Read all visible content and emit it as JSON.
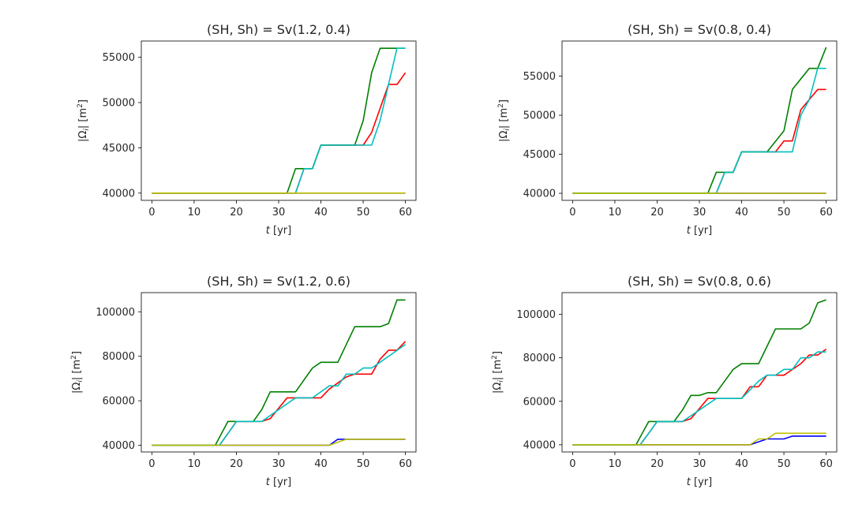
{
  "figure": {
    "background": "#ffffff",
    "line_colors": [
      "#0000ff",
      "#ff0000",
      "#008000",
      "#00bfbf",
      "#bfbf00"
    ]
  },
  "chart_data": [
    {
      "type": "line",
      "title": "(SH, Sh) = Sv(1.2, 0.4)",
      "xlabel": "t [yr]",
      "ylabel": "|Ωi| [m2]",
      "xlim": [
        -2.5,
        62.5
      ],
      "ylim": [
        39200,
        56800
      ],
      "xticks": [
        0,
        10,
        20,
        30,
        40,
        50,
        60
      ],
      "yticks": [
        40000,
        45000,
        50000,
        55000
      ],
      "series": [
        {
          "color": "#0000ff",
          "points": [
            [
              0,
              40000
            ],
            [
              60,
              40000
            ]
          ]
        },
        {
          "color": "#ff0000",
          "points": [
            [
              0,
              40000
            ],
            [
              34,
              40000
            ],
            [
              36,
              42700
            ],
            [
              38,
              42700
            ],
            [
              40,
              45300
            ],
            [
              50,
              45300
            ],
            [
              52,
              46700
            ],
            [
              56,
              52000
            ],
            [
              58,
              52000
            ],
            [
              60,
              53300
            ]
          ]
        },
        {
          "color": "#008000",
          "points": [
            [
              0,
              40000
            ],
            [
              32,
              40000
            ],
            [
              34,
              42700
            ],
            [
              38,
              42700
            ],
            [
              40,
              45300
            ],
            [
              48,
              45300
            ],
            [
              50,
              48000
            ],
            [
              52,
              53300
            ],
            [
              54,
              56000
            ],
            [
              60,
              56000
            ]
          ]
        },
        {
          "color": "#00bfbf",
          "points": [
            [
              0,
              40000
            ],
            [
              34,
              40000
            ],
            [
              36,
              42700
            ],
            [
              38,
              42700
            ],
            [
              40,
              45300
            ],
            [
              52,
              45300
            ],
            [
              54,
              48000
            ],
            [
              56,
              52000
            ],
            [
              58,
              56000
            ],
            [
              60,
              56000
            ]
          ]
        },
        {
          "color": "#bfbf00",
          "points": [
            [
              0,
              40000
            ],
            [
              60,
              40000
            ]
          ]
        }
      ]
    },
    {
      "type": "line",
      "title": "(SH, Sh) = Sv(0.8, 0.4)",
      "xlabel": "t [yr]",
      "ylabel": "|Ωi| [m2]",
      "xlim": [
        -2.5,
        62.5
      ],
      "ylim": [
        39100,
        59500
      ],
      "xticks": [
        0,
        10,
        20,
        30,
        40,
        50,
        60
      ],
      "yticks": [
        40000,
        45000,
        50000,
        55000
      ],
      "series": [
        {
          "color": "#0000ff",
          "points": [
            [
              0,
              40000
            ],
            [
              60,
              40000
            ]
          ]
        },
        {
          "color": "#ff0000",
          "points": [
            [
              0,
              40000
            ],
            [
              34,
              40000
            ],
            [
              36,
              42700
            ],
            [
              38,
              42700
            ],
            [
              40,
              45300
            ],
            [
              48,
              45300
            ],
            [
              50,
              46700
            ],
            [
              52,
              46700
            ],
            [
              54,
              50700
            ],
            [
              56,
              52000
            ],
            [
              58,
              53300
            ],
            [
              60,
              53300
            ]
          ]
        },
        {
          "color": "#008000",
          "points": [
            [
              0,
              40000
            ],
            [
              32,
              40000
            ],
            [
              34,
              42700
            ],
            [
              38,
              42700
            ],
            [
              40,
              45300
            ],
            [
              46,
              45300
            ],
            [
              50,
              48000
            ],
            [
              52,
              53300
            ],
            [
              56,
              56000
            ],
            [
              58,
              56000
            ],
            [
              60,
              58700
            ]
          ]
        },
        {
          "color": "#00bfbf",
          "points": [
            [
              0,
              40000
            ],
            [
              34,
              40000
            ],
            [
              36,
              42700
            ],
            [
              38,
              42700
            ],
            [
              40,
              45300
            ],
            [
              52,
              45300
            ],
            [
              54,
              50000
            ],
            [
              56,
              52000
            ],
            [
              58,
              56000
            ],
            [
              60,
              56000
            ]
          ]
        },
        {
          "color": "#bfbf00",
          "points": [
            [
              0,
              40000
            ],
            [
              60,
              40000
            ]
          ]
        }
      ]
    },
    {
      "type": "line",
      "title": "(SH, Sh) = Sv(1.2, 0.6)",
      "xlabel": "t [yr]",
      "ylabel": "|Ωi| [m2]",
      "xlim": [
        -2.5,
        62.5
      ],
      "ylim": [
        37000,
        108600
      ],
      "xticks": [
        0,
        10,
        20,
        30,
        40,
        50,
        60
      ],
      "yticks": [
        40000,
        60000,
        80000,
        100000
      ],
      "series": [
        {
          "color": "#0000ff",
          "points": [
            [
              0,
              40000
            ],
            [
              42,
              40000
            ],
            [
              44,
              42700
            ],
            [
              60,
              42700
            ]
          ]
        },
        {
          "color": "#ff0000",
          "points": [
            [
              0,
              40000
            ],
            [
              16,
              40000
            ],
            [
              18,
              45300
            ],
            [
              20,
              50700
            ],
            [
              26,
              50700
            ],
            [
              28,
              52000
            ],
            [
              32,
              61300
            ],
            [
              40,
              61300
            ],
            [
              42,
              65300
            ],
            [
              46,
              70700
            ],
            [
              48,
              72000
            ],
            [
              52,
              72000
            ],
            [
              54,
              78700
            ],
            [
              56,
              82700
            ],
            [
              58,
              82700
            ],
            [
              60,
              86700
            ]
          ]
        },
        {
          "color": "#008000",
          "points": [
            [
              0,
              40000
            ],
            [
              15,
              40000
            ],
            [
              18,
              50700
            ],
            [
              24,
              50700
            ],
            [
              26,
              56000
            ],
            [
              28,
              64000
            ],
            [
              34,
              64000
            ],
            [
              38,
              74700
            ],
            [
              40,
              77300
            ],
            [
              44,
              77300
            ],
            [
              48,
              93300
            ],
            [
              54,
              93300
            ],
            [
              56,
              94700
            ],
            [
              58,
              105300
            ],
            [
              60,
              105300
            ]
          ]
        },
        {
          "color": "#00bfbf",
          "points": [
            [
              0,
              40000
            ],
            [
              16,
              40000
            ],
            [
              18,
              45300
            ],
            [
              20,
              50700
            ],
            [
              26,
              50700
            ],
            [
              30,
              56000
            ],
            [
              34,
              61300
            ],
            [
              38,
              61300
            ],
            [
              42,
              66700
            ],
            [
              44,
              66700
            ],
            [
              46,
              72000
            ],
            [
              48,
              72000
            ],
            [
              50,
              74700
            ],
            [
              52,
              74700
            ],
            [
              54,
              77300
            ],
            [
              60,
              85300
            ]
          ]
        },
        {
          "color": "#bfbf00",
          "points": [
            [
              0,
              40000
            ],
            [
              42,
              40000
            ],
            [
              46,
              42700
            ],
            [
              60,
              42700
            ]
          ]
        }
      ]
    },
    {
      "type": "line",
      "title": "(SH, Sh) = Sv(0.8, 0.6)",
      "xlabel": "t [yr]",
      "ylabel": "|Ωi| [m2]",
      "xlim": [
        -2.5,
        62.5
      ],
      "ylim": [
        36700,
        110000
      ],
      "xticks": [
        0,
        10,
        20,
        30,
        40,
        50,
        60
      ],
      "yticks": [
        40000,
        60000,
        80000,
        100000
      ],
      "series": [
        {
          "color": "#0000ff",
          "points": [
            [
              0,
              40000
            ],
            [
              42,
              40000
            ],
            [
              46,
              42700
            ],
            [
              50,
              42700
            ],
            [
              52,
              44000
            ],
            [
              60,
              44000
            ]
          ]
        },
        {
          "color": "#ff0000",
          "points": [
            [
              0,
              40000
            ],
            [
              16,
              40000
            ],
            [
              18,
              45300
            ],
            [
              20,
              50700
            ],
            [
              26,
              50700
            ],
            [
              28,
              52000
            ],
            [
              32,
              61300
            ],
            [
              40,
              61300
            ],
            [
              42,
              66700
            ],
            [
              44,
              66700
            ],
            [
              46,
              72000
            ],
            [
              50,
              72000
            ],
            [
              54,
              77300
            ],
            [
              56,
              81300
            ],
            [
              58,
              81300
            ],
            [
              60,
              84000
            ]
          ]
        },
        {
          "color": "#008000",
          "points": [
            [
              0,
              40000
            ],
            [
              15,
              40000
            ],
            [
              18,
              50700
            ],
            [
              24,
              50700
            ],
            [
              26,
              56000
            ],
            [
              28,
              62700
            ],
            [
              30,
              62700
            ],
            [
              32,
              64000
            ],
            [
              34,
              64000
            ],
            [
              38,
              74700
            ],
            [
              40,
              77300
            ],
            [
              44,
              77300
            ],
            [
              48,
              93300
            ],
            [
              54,
              93300
            ],
            [
              56,
              96000
            ],
            [
              58,
              105300
            ],
            [
              60,
              106700
            ]
          ]
        },
        {
          "color": "#00bfbf",
          "points": [
            [
              0,
              40000
            ],
            [
              16,
              40000
            ],
            [
              18,
              45300
            ],
            [
              20,
              50700
            ],
            [
              26,
              50700
            ],
            [
              30,
              56000
            ],
            [
              34,
              61300
            ],
            [
              40,
              61300
            ],
            [
              44,
              69300
            ],
            [
              46,
              72000
            ],
            [
              48,
              72000
            ],
            [
              50,
              74700
            ],
            [
              52,
              74700
            ],
            [
              54,
              80000
            ],
            [
              56,
              80000
            ],
            [
              58,
              82700
            ],
            [
              60,
              82700
            ]
          ]
        },
        {
          "color": "#bfbf00",
          "points": [
            [
              0,
              40000
            ],
            [
              42,
              40000
            ],
            [
              44,
              42700
            ],
            [
              46,
              42700
            ],
            [
              48,
              45300
            ],
            [
              60,
              45300
            ]
          ]
        }
      ]
    }
  ]
}
